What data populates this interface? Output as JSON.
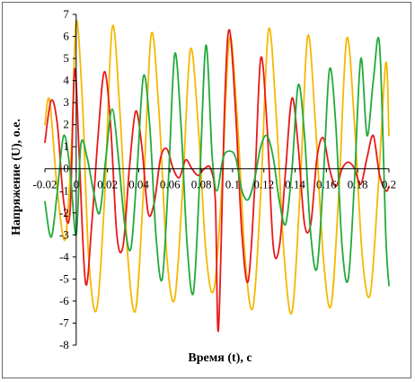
{
  "chart_data": {
    "type": "line",
    "title": "",
    "xlabel": "Время (t), с",
    "ylabel": "Напряжение (U), о.е.",
    "xlim": [
      -0.02,
      0.2
    ],
    "ylim": [
      -8,
      7
    ],
    "x_ticks": [
      -0.02,
      0,
      0.02,
      0.04,
      0.06,
      0.08,
      0.1,
      0.12,
      0.14,
      0.16,
      0.18,
      0.2
    ],
    "x_tick_labels": [
      "-0.02",
      "0",
      "0.02",
      "0.04",
      "0.06",
      "0.08",
      "0.1",
      "0.12",
      "0.14",
      "0.16",
      "0.18",
      "0.2"
    ],
    "y_ticks": [
      -8,
      -7,
      -6,
      -5,
      -4,
      -3,
      -2,
      -1,
      0,
      1,
      2,
      3,
      4,
      5,
      6,
      7
    ],
    "y_tick_labels": [
      "-8",
      "-7",
      "-6",
      "-5",
      "-4",
      "-3",
      "-2",
      "-1",
      "0",
      "1",
      "2",
      "3",
      "4",
      "5",
      "6",
      "7"
    ],
    "grid": false,
    "legend": "none",
    "series": [
      {
        "color": "#f5b800",
        "x": [
          -0.02,
          -0.017,
          -0.012,
          -0.007,
          -0.003,
          0.0,
          0.004,
          0.008,
          0.013,
          0.018,
          0.023,
          0.028,
          0.033,
          0.038,
          0.043,
          0.048,
          0.053,
          0.058,
          0.063,
          0.068,
          0.073,
          0.078,
          0.083,
          0.088,
          0.093,
          0.098,
          0.103,
          0.108,
          0.113,
          0.118,
          0.123,
          0.128,
          0.133,
          0.138,
          0.143,
          0.148,
          0.153,
          0.158,
          0.163,
          0.168,
          0.173,
          0.178,
          0.183,
          0.188,
          0.193,
          0.198,
          0.2
        ],
        "y": [
          2.0,
          3.1,
          -1.0,
          -3.2,
          1.0,
          6.7,
          3.0,
          -4.0,
          -6.4,
          -1.5,
          6.4,
          2.5,
          -4.0,
          -6.4,
          -1.0,
          6.1,
          2.5,
          -4.0,
          -5.9,
          -1.0,
          5.4,
          2.0,
          -3.8,
          -5.5,
          -1.0,
          5.9,
          2.3,
          -4.0,
          -6.3,
          -1.2,
          6.3,
          2.3,
          -4.0,
          -6.5,
          -1.2,
          6.0,
          2.0,
          -4.0,
          -6.2,
          -1.0,
          5.9,
          2.0,
          -4.0,
          -5.7,
          -1.0,
          4.8,
          1.5
        ]
      },
      {
        "color": "#e81919",
        "x": [
          -0.02,
          -0.016,
          -0.012,
          -0.008,
          -0.004,
          -0.001,
          0.002,
          0.006,
          0.01,
          0.014,
          0.018,
          0.022,
          0.026,
          0.03,
          0.034,
          0.038,
          0.042,
          0.046,
          0.05,
          0.054,
          0.058,
          0.062,
          0.066,
          0.07,
          0.074,
          0.078,
          0.082,
          0.086,
          0.089,
          0.091,
          0.095,
          0.098,
          0.102,
          0.106,
          0.11,
          0.114,
          0.118,
          0.122,
          0.126,
          0.13,
          0.134,
          0.138,
          0.142,
          0.146,
          0.15,
          0.154,
          0.158,
          0.162,
          0.166,
          0.17,
          0.174,
          0.178,
          0.182,
          0.186,
          0.19,
          0.194,
          0.198,
          0.2
        ],
        "y": [
          1.2,
          3.1,
          2.0,
          -1.5,
          -2.0,
          4.5,
          0.5,
          -5.2,
          -2.5,
          1.5,
          4.4,
          2.0,
          -3.0,
          -3.5,
          0.0,
          2.6,
          1.0,
          -2.0,
          -1.5,
          0.5,
          0.9,
          0.0,
          -0.4,
          0.4,
          0.0,
          -0.3,
          0.0,
          0.0,
          -1.5,
          -7.3,
          3.0,
          6.3,
          2.5,
          -3.0,
          -5.1,
          -1.0,
          5.0,
          2.0,
          -3.5,
          -3.5,
          0.0,
          3.2,
          1.0,
          -2.5,
          -2.5,
          0.5,
          1.4,
          0.0,
          -0.8,
          0.0,
          0.3,
          0.0,
          -0.7,
          0.5,
          1.5,
          -0.3,
          -1.0,
          -0.8
        ]
      },
      {
        "color": "#22aa3a",
        "x": [
          -0.02,
          -0.016,
          -0.012,
          -0.008,
          -0.004,
          0.0,
          0.003,
          0.007,
          0.011,
          0.015,
          0.019,
          0.023,
          0.027,
          0.031,
          0.035,
          0.039,
          0.043,
          0.047,
          0.051,
          0.055,
          0.059,
          0.063,
          0.067,
          0.071,
          0.075,
          0.079,
          0.083,
          0.087,
          0.09,
          0.094,
          0.098,
          0.102,
          0.106,
          0.11,
          0.114,
          0.118,
          0.122,
          0.126,
          0.13,
          0.134,
          0.138,
          0.142,
          0.146,
          0.15,
          0.154,
          0.158,
          0.162,
          0.166,
          0.17,
          0.174,
          0.178,
          0.182,
          0.186,
          0.19,
          0.194,
          0.198,
          0.2
        ],
        "y": [
          -1.5,
          -3.1,
          -1.0,
          1.5,
          0.0,
          -3.0,
          1.1,
          0.5,
          -1.0,
          -2.0,
          0.5,
          2.7,
          0.5,
          -2.5,
          -3.6,
          0.0,
          4.2,
          2.0,
          -3.0,
          -5.0,
          -0.5,
          5.2,
          2.0,
          -3.5,
          -5.6,
          -0.5,
          5.6,
          0.5,
          -1.0,
          0.5,
          0.8,
          0.5,
          -1.0,
          -1.4,
          -0.5,
          1.0,
          1.5,
          0.5,
          -1.5,
          -2.5,
          0.0,
          3.8,
          1.5,
          -3.0,
          -4.5,
          -0.5,
          4.5,
          2.0,
          -3.5,
          -5.0,
          -0.5,
          5.0,
          1.5,
          4.0,
          5.6,
          -3.0,
          -5.3
        ]
      }
    ]
  }
}
